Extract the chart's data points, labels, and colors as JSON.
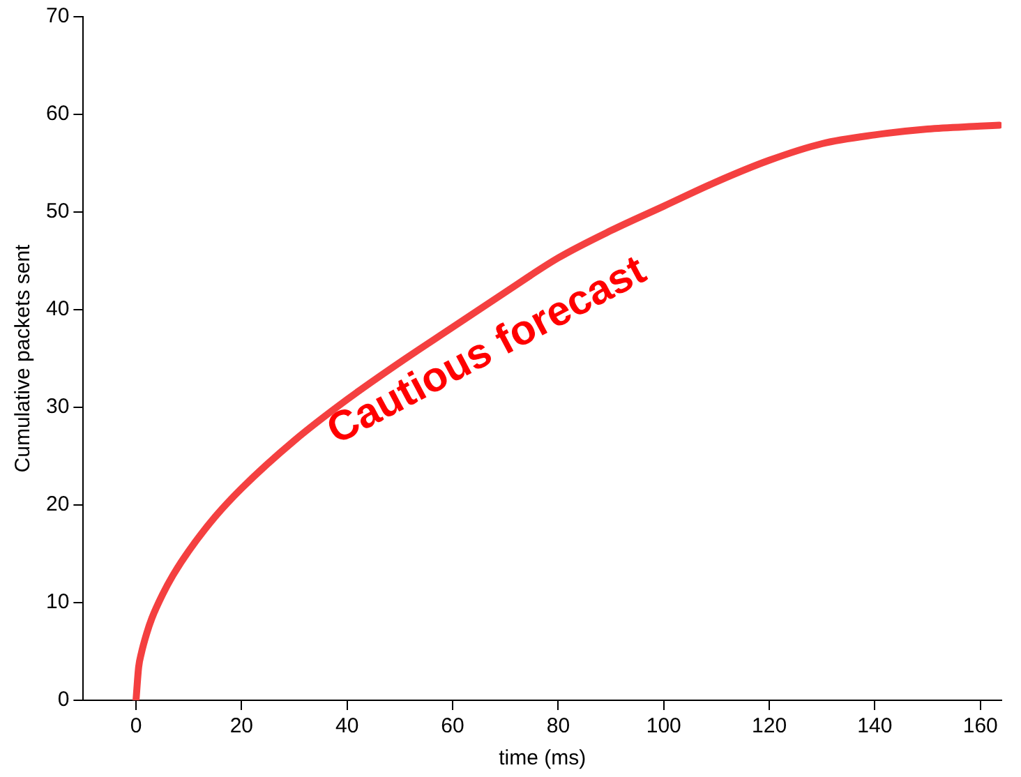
{
  "chart_data": {
    "type": "line",
    "xlabel": "time (ms)",
    "ylabel": "Cumulative packets sent",
    "x": [
      0,
      0.5,
      1,
      2,
      3,
      5,
      7,
      10,
      15,
      20,
      30,
      40,
      50,
      60,
      70,
      80,
      90,
      100,
      110,
      120,
      130,
      140,
      150,
      160,
      163.6
    ],
    "series": [
      {
        "color": "#f44040",
        "values": [
          0,
          3.4,
          4.8,
          6.8,
          8.4,
          10.8,
          12.8,
          15.3,
          18.8,
          21.7,
          26.6,
          30.8,
          34.6,
          38.2,
          41.8,
          45.3,
          48.1,
          50.6,
          53.1,
          55.3,
          57.0,
          57.9,
          58.5,
          58.8,
          58.9
        ]
      }
    ],
    "xlim": [
      -10,
      164
    ],
    "xticks": [
      0,
      20,
      40,
      60,
      80,
      100,
      120,
      140,
      160
    ],
    "ylim": [
      0,
      70
    ],
    "yticks": [
      0,
      10,
      20,
      30,
      40,
      50,
      60,
      70
    ],
    "grid": false,
    "legend": false,
    "marker": "none",
    "line_style": "solid",
    "annotations": [
      "Cautious forecast"
    ]
  }
}
